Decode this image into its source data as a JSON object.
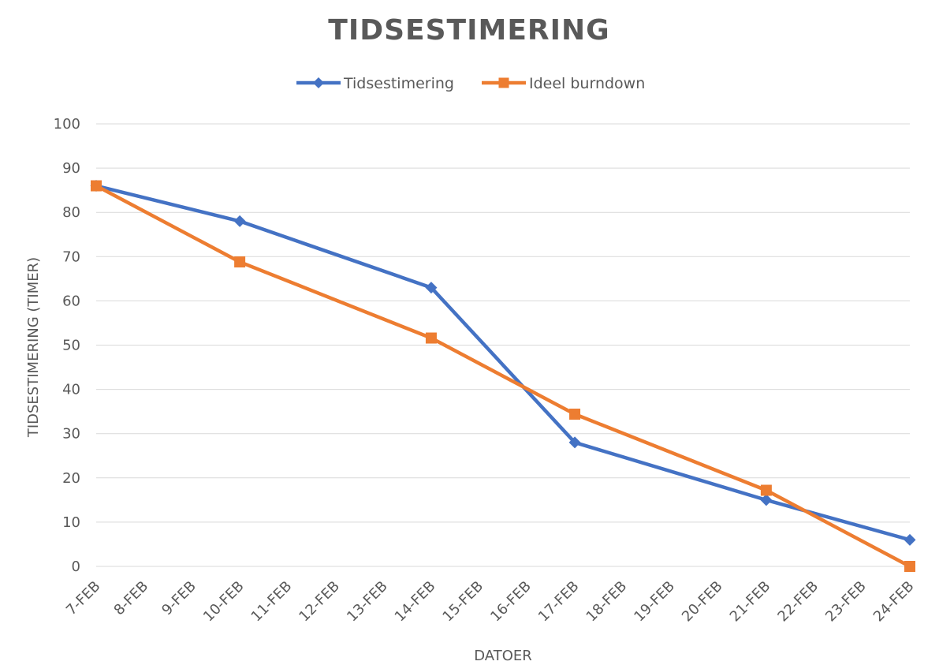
{
  "chart_data": {
    "type": "line",
    "title": "TIDSESTIMERING",
    "xlabel": "DATOER",
    "ylabel": "TIDSESTIMERING (TIMER)",
    "ylim": [
      0,
      100
    ],
    "yticks": [
      "0",
      "10",
      "20",
      "30",
      "40",
      "50",
      "60",
      "70",
      "80",
      "90",
      "100"
    ],
    "categories": [
      "7-FEB",
      "8-FEB",
      "9-FEB",
      "10-FEB",
      "11-FEB",
      "12-FEB",
      "13-FEB",
      "14-FEB",
      "15-FEB",
      "16-FEB",
      "17-FEB",
      "18-FEB",
      "19-FEB",
      "20-FEB",
      "21-FEB",
      "22-FEB",
      "23-FEB",
      "24-FEB"
    ],
    "grid": true,
    "legend_position": "top",
    "series": [
      {
        "name": "Tidsestimering",
        "color": "#4472c4",
        "marker": "diamond",
        "points": [
          {
            "x": "7-FEB",
            "y": 86
          },
          {
            "x": "10-FEB",
            "y": 78
          },
          {
            "x": "14-FEB",
            "y": 63
          },
          {
            "x": "17-FEB",
            "y": 28
          },
          {
            "x": "21-FEB",
            "y": 15
          },
          {
            "x": "24-FEB",
            "y": 6
          }
        ]
      },
      {
        "name": "Ideel burndown",
        "color": "#ed7d31",
        "marker": "square",
        "points": [
          {
            "x": "7-FEB",
            "y": 86
          },
          {
            "x": "10-FEB",
            "y": 68.8
          },
          {
            "x": "14-FEB",
            "y": 51.6
          },
          {
            "x": "17-FEB",
            "y": 34.4
          },
          {
            "x": "21-FEB",
            "y": 17.2
          },
          {
            "x": "24-FEB",
            "y": 0
          }
        ]
      }
    ]
  }
}
